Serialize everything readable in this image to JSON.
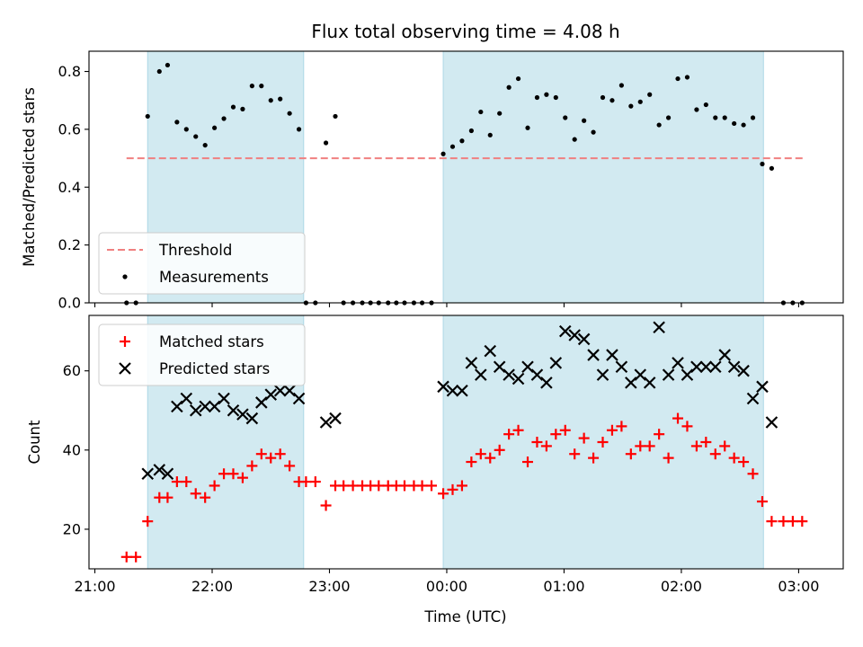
{
  "chart_data": {
    "type": "scatter",
    "title": "Flux total observing time = 4.08 h",
    "xlabel": "Time (UTC)",
    "x_unit": "hours from 21:00 UTC",
    "x_ticks": [
      {
        "value": 0,
        "label": "21:00"
      },
      {
        "value": 1,
        "label": "22:00"
      },
      {
        "value": 2,
        "label": "23:00"
      },
      {
        "value": 3,
        "label": "00:00"
      },
      {
        "value": 4,
        "label": "01:00"
      },
      {
        "value": 5,
        "label": "02:00"
      },
      {
        "value": 6,
        "label": "03:00"
      }
    ],
    "xlim": [
      -0.05,
      6.38
    ],
    "shaded_intervals": [
      [
        0.45,
        1.78
      ],
      [
        2.97,
        5.7
      ]
    ],
    "panels": [
      {
        "ylabel": "Matched/Predicted stars",
        "ylim": [
          0,
          0.87
        ],
        "yticks": [
          0.0,
          0.2,
          0.4,
          0.6,
          0.8
        ],
        "ytick_labels": [
          "0.0",
          "0.2",
          "0.4",
          "0.6",
          "0.8"
        ],
        "threshold": {
          "name": "Threshold",
          "value": 0.5,
          "x_range": [
            0.27,
            6.05
          ],
          "color": "#f08080"
        },
        "legend_position": "lower-left",
        "series": [
          {
            "name": "Measurements",
            "marker": "dot",
            "color": "#000000",
            "points": [
              [
                0.27,
                0.0
              ],
              [
                0.35,
                0.0
              ],
              [
                0.45,
                0.645
              ],
              [
                0.55,
                0.8
              ],
              [
                0.62,
                0.822
              ],
              [
                0.7,
                0.625
              ],
              [
                0.78,
                0.6
              ],
              [
                0.86,
                0.575
              ],
              [
                0.94,
                0.545
              ],
              [
                1.02,
                0.605
              ],
              [
                1.1,
                0.637
              ],
              [
                1.18,
                0.677
              ],
              [
                1.26,
                0.67
              ],
              [
                1.34,
                0.75
              ],
              [
                1.42,
                0.75
              ],
              [
                1.5,
                0.7
              ],
              [
                1.58,
                0.705
              ],
              [
                1.66,
                0.655
              ],
              [
                1.74,
                0.6
              ],
              [
                1.8,
                0.0
              ],
              [
                1.88,
                0.0
              ],
              [
                1.97,
                0.553
              ],
              [
                2.05,
                0.645
              ],
              [
                2.12,
                0.0
              ],
              [
                2.2,
                0.0
              ],
              [
                2.28,
                0.0
              ],
              [
                2.35,
                0.0
              ],
              [
                2.42,
                0.0
              ],
              [
                2.5,
                0.0
              ],
              [
                2.57,
                0.0
              ],
              [
                2.64,
                0.0
              ],
              [
                2.72,
                0.0
              ],
              [
                2.79,
                0.0
              ],
              [
                2.87,
                0.0
              ],
              [
                2.97,
                0.515
              ],
              [
                3.05,
                0.54
              ],
              [
                3.13,
                0.56
              ],
              [
                3.21,
                0.595
              ],
              [
                3.29,
                0.66
              ],
              [
                3.37,
                0.58
              ],
              [
                3.45,
                0.655
              ],
              [
                3.53,
                0.745
              ],
              [
                3.61,
                0.775
              ],
              [
                3.69,
                0.605
              ],
              [
                3.77,
                0.71
              ],
              [
                3.85,
                0.72
              ],
              [
                3.93,
                0.71
              ],
              [
                4.01,
                0.64
              ],
              [
                4.09,
                0.565
              ],
              [
                4.17,
                0.63
              ],
              [
                4.25,
                0.59
              ],
              [
                4.33,
                0.71
              ],
              [
                4.41,
                0.7
              ],
              [
                4.49,
                0.752
              ],
              [
                4.57,
                0.68
              ],
              [
                4.65,
                0.695
              ],
              [
                4.73,
                0.72
              ],
              [
                4.81,
                0.615
              ],
              [
                4.89,
                0.64
              ],
              [
                4.97,
                0.775
              ],
              [
                5.05,
                0.78
              ],
              [
                5.13,
                0.668
              ],
              [
                5.21,
                0.685
              ],
              [
                5.29,
                0.64
              ],
              [
                5.37,
                0.64
              ],
              [
                5.45,
                0.62
              ],
              [
                5.53,
                0.615
              ],
              [
                5.61,
                0.64
              ],
              [
                5.69,
                0.48
              ],
              [
                5.77,
                0.465
              ],
              [
                5.87,
                0.0
              ],
              [
                5.95,
                0.0
              ],
              [
                6.03,
                0.0
              ]
            ]
          }
        ]
      },
      {
        "ylabel": "Count",
        "ylim": [
          10,
          74
        ],
        "yticks": [
          20,
          40,
          60
        ],
        "ytick_labels": [
          "20",
          "40",
          "60"
        ],
        "legend_position": "upper-left",
        "series": [
          {
            "name": "Matched stars",
            "marker": "plus",
            "color": "#ff0000",
            "points": [
              [
                0.27,
                13
              ],
              [
                0.35,
                13
              ],
              [
                0.45,
                22
              ],
              [
                0.55,
                28
              ],
              [
                0.62,
                28
              ],
              [
                0.7,
                32
              ],
              [
                0.78,
                32
              ],
              [
                0.86,
                29
              ],
              [
                0.94,
                28
              ],
              [
                1.02,
                31
              ],
              [
                1.1,
                34
              ],
              [
                1.18,
                34
              ],
              [
                1.26,
                33
              ],
              [
                1.34,
                36
              ],
              [
                1.42,
                39
              ],
              [
                1.5,
                38
              ],
              [
                1.58,
                39
              ],
              [
                1.66,
                36
              ],
              [
                1.74,
                32
              ],
              [
                1.8,
                32
              ],
              [
                1.88,
                32
              ],
              [
                1.97,
                26
              ],
              [
                2.05,
                31
              ],
              [
                2.12,
                31
              ],
              [
                2.2,
                31
              ],
              [
                2.28,
                31
              ],
              [
                2.35,
                31
              ],
              [
                2.42,
                31
              ],
              [
                2.5,
                31
              ],
              [
                2.57,
                31
              ],
              [
                2.64,
                31
              ],
              [
                2.72,
                31
              ],
              [
                2.79,
                31
              ],
              [
                2.87,
                31
              ],
              [
                2.97,
                29
              ],
              [
                3.05,
                30
              ],
              [
                3.13,
                31
              ],
              [
                3.21,
                37
              ],
              [
                3.29,
                39
              ],
              [
                3.37,
                38
              ],
              [
                3.45,
                40
              ],
              [
                3.53,
                44
              ],
              [
                3.61,
                45
              ],
              [
                3.69,
                37
              ],
              [
                3.77,
                42
              ],
              [
                3.85,
                41
              ],
              [
                3.93,
                44
              ],
              [
                4.01,
                45
              ],
              [
                4.09,
                39
              ],
              [
                4.17,
                43
              ],
              [
                4.25,
                38
              ],
              [
                4.33,
                42
              ],
              [
                4.41,
                45
              ],
              [
                4.49,
                46
              ],
              [
                4.57,
                39
              ],
              [
                4.65,
                41
              ],
              [
                4.73,
                41
              ],
              [
                4.81,
                44
              ],
              [
                4.89,
                38
              ],
              [
                4.97,
                48
              ],
              [
                5.05,
                46
              ],
              [
                5.13,
                41
              ],
              [
                5.21,
                42
              ],
              [
                5.29,
                39
              ],
              [
                5.37,
                41
              ],
              [
                5.45,
                38
              ],
              [
                5.53,
                37
              ],
              [
                5.61,
                34
              ],
              [
                5.69,
                27
              ],
              [
                5.77,
                22
              ],
              [
                5.87,
                22
              ],
              [
                5.95,
                22
              ],
              [
                6.03,
                22
              ]
            ]
          },
          {
            "name": "Predicted stars",
            "marker": "x",
            "color": "#000000",
            "points": [
              [
                0.45,
                34
              ],
              [
                0.55,
                35
              ],
              [
                0.62,
                34
              ],
              [
                0.7,
                51
              ],
              [
                0.78,
                53
              ],
              [
                0.86,
                50
              ],
              [
                0.94,
                51
              ],
              [
                1.02,
                51
              ],
              [
                1.1,
                53
              ],
              [
                1.18,
                50
              ],
              [
                1.26,
                49
              ],
              [
                1.34,
                48
              ],
              [
                1.42,
                52
              ],
              [
                1.5,
                54
              ],
              [
                1.58,
                55
              ],
              [
                1.66,
                55
              ],
              [
                1.74,
                53
              ],
              [
                1.97,
                47
              ],
              [
                2.05,
                48
              ],
              [
                2.97,
                56
              ],
              [
                3.05,
                55
              ],
              [
                3.13,
                55
              ],
              [
                3.21,
                62
              ],
              [
                3.29,
                59
              ],
              [
                3.37,
                65
              ],
              [
                3.45,
                61
              ],
              [
                3.53,
                59
              ],
              [
                3.61,
                58
              ],
              [
                3.69,
                61
              ],
              [
                3.77,
                59
              ],
              [
                3.85,
                57
              ],
              [
                3.93,
                62
              ],
              [
                4.01,
                70
              ],
              [
                4.09,
                69
              ],
              [
                4.17,
                68
              ],
              [
                4.25,
                64
              ],
              [
                4.33,
                59
              ],
              [
                4.41,
                64
              ],
              [
                4.49,
                61
              ],
              [
                4.57,
                57
              ],
              [
                4.65,
                59
              ],
              [
                4.73,
                57
              ],
              [
                4.81,
                71
              ],
              [
                4.89,
                59
              ],
              [
                4.97,
                62
              ],
              [
                5.05,
                59
              ],
              [
                5.13,
                61
              ],
              [
                5.21,
                61
              ],
              [
                5.29,
                61
              ],
              [
                5.37,
                64
              ],
              [
                5.45,
                61
              ],
              [
                5.53,
                60
              ],
              [
                5.61,
                53
              ],
              [
                5.69,
                56
              ],
              [
                5.77,
                47
              ]
            ]
          }
        ]
      }
    ],
    "shade_color": "#add8e6",
    "grid": false
  }
}
